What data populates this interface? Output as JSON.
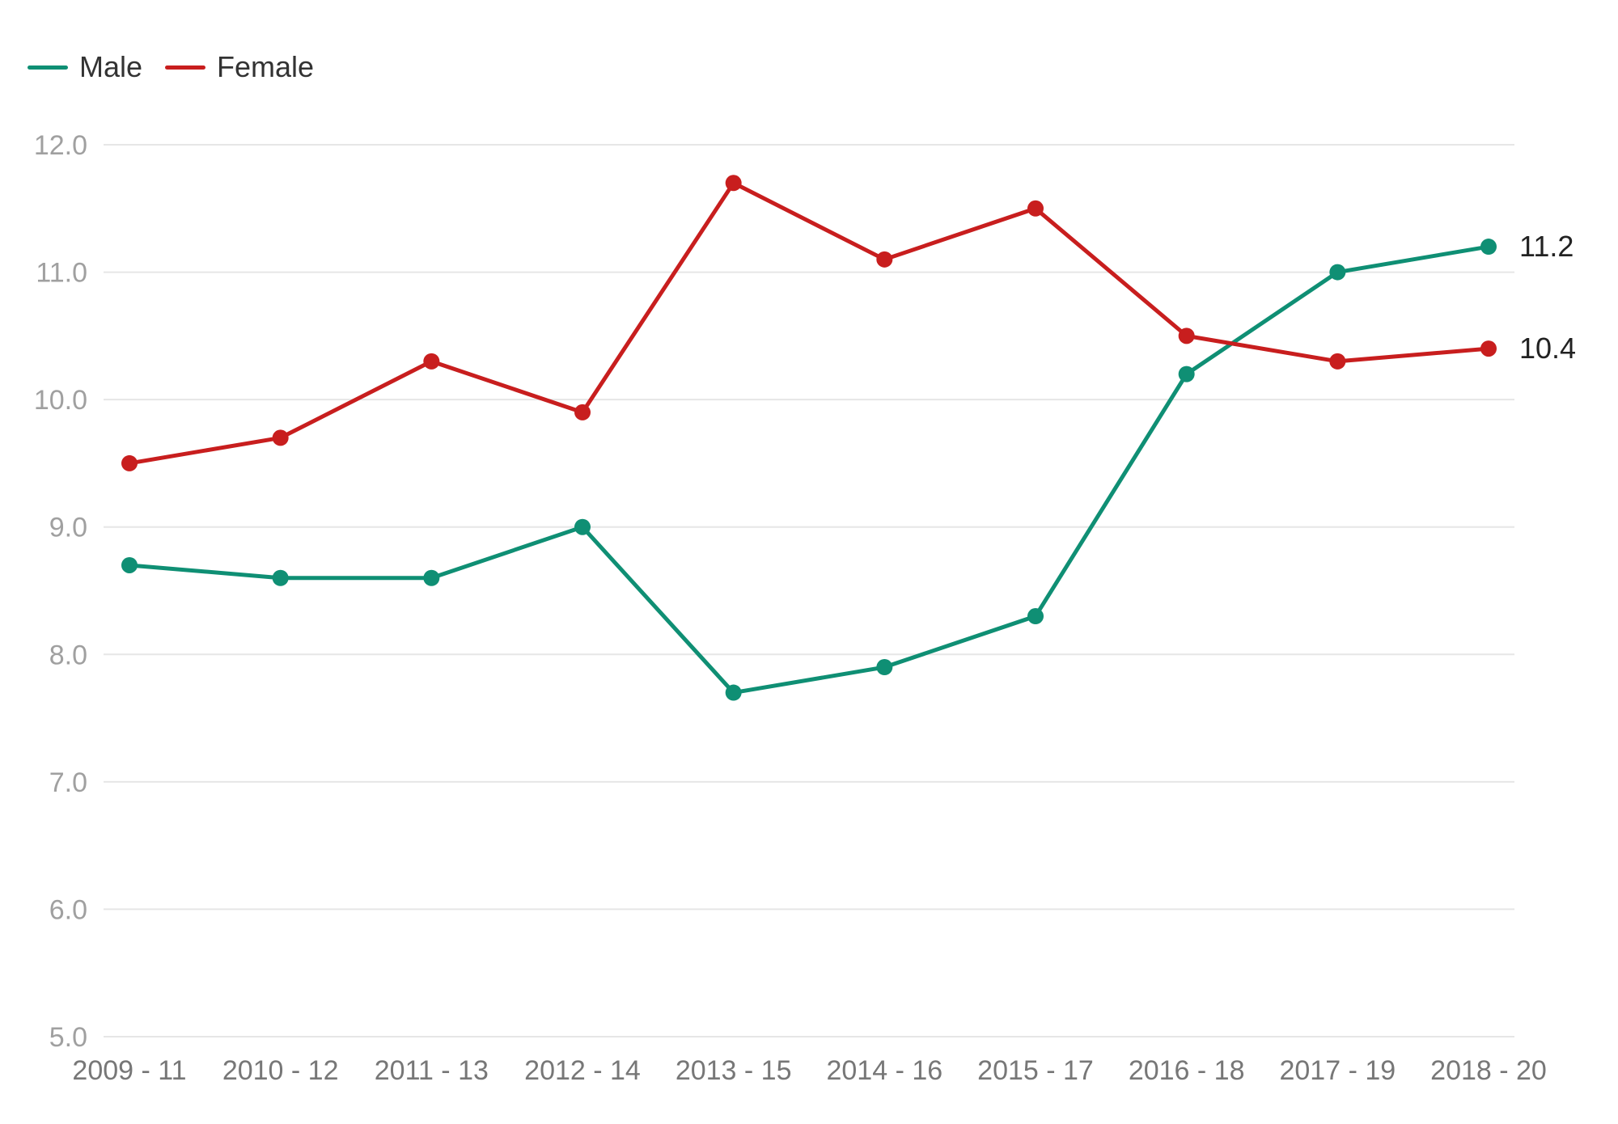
{
  "chart_data": {
    "type": "line",
    "title": "",
    "xlabel": "",
    "ylabel": "",
    "categories": [
      "2009 - 11",
      "2010 - 12",
      "2011 - 13",
      "2012 - 14",
      "2013 - 15",
      "2014 - 16",
      "2015 - 17",
      "2016 - 18",
      "2017 - 19",
      "2018 - 20"
    ],
    "ylim": [
      5.0,
      12.0
    ],
    "yticks": [
      "5.0",
      "6.0",
      "7.0",
      "8.0",
      "9.0",
      "10.0",
      "11.0",
      "12.0"
    ],
    "grid": true,
    "legend_position": "top-left",
    "series": [
      {
        "name": "Male",
        "color": "#0f8f74",
        "values": [
          8.7,
          8.6,
          8.6,
          9.0,
          7.7,
          7.9,
          8.3,
          10.2,
          11.0,
          11.2
        ],
        "end_label": "11.2"
      },
      {
        "name": "Female",
        "color": "#c81e1e",
        "values": [
          9.5,
          9.7,
          10.3,
          9.9,
          11.7,
          11.1,
          11.5,
          10.5,
          10.3,
          10.4
        ],
        "end_label": "10.4"
      }
    ]
  }
}
